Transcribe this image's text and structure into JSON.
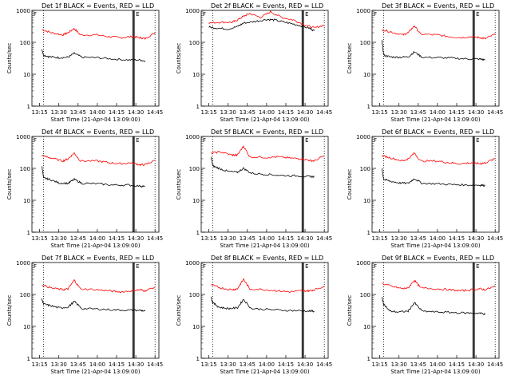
{
  "chart_data": [
    {
      "type": "line",
      "title": "Det 1f BLACK = Events, RED = LLD",
      "xlabel": "Start Time (21-Apr-04 13:09:00)",
      "ylabel": "Counts/sec",
      "x_ticks": [
        "13:15",
        "13:30",
        "13:45",
        "14:00",
        "14:15",
        "14:30",
        "14:45"
      ],
      "y_ticks": [
        "1",
        "10",
        "100",
        "1000"
      ],
      "yscale": "log",
      "ylim": [
        1,
        1000
      ],
      "markers": [
        "F",
        "E"
      ],
      "series": [
        {
          "color": "#ff0000",
          "x": [
            13.28,
            13.4,
            13.55,
            13.62,
            13.7,
            13.78,
            14.0,
            14.15,
            14.3,
            14.45,
            14.55,
            14.62,
            14.75
          ],
          "y": [
            250,
            200,
            170,
            200,
            270,
            170,
            170,
            150,
            140,
            150,
            140,
            130,
            200
          ]
        },
        {
          "color": "#000000",
          "x": [
            13.28,
            13.3,
            13.38,
            13.5,
            13.62,
            13.7,
            13.8,
            14.0,
            14.2,
            14.4,
            14.55,
            14.62
          ],
          "y": [
            60,
            40,
            35,
            33,
            34,
            45,
            34,
            33,
            30,
            28,
            28,
            26
          ]
        }
      ]
    },
    {
      "type": "line",
      "title": "Det 2f BLACK = Events, RED = LLD",
      "xlabel": "Start Time (21-Apr-04 13:09:00)",
      "ylabel": "Counts/sec",
      "x_ticks": [
        "13:15",
        "13:30",
        "13:45",
        "14:00",
        "14:15",
        "14:30",
        "14:45"
      ],
      "y_ticks": [
        "1",
        "10",
        "100",
        "1000"
      ],
      "yscale": "log",
      "ylim": [
        1,
        1000
      ],
      "markers": [
        "F",
        "E"
      ],
      "series": [
        {
          "color": "#ff0000",
          "x": [
            13.25,
            13.4,
            13.55,
            13.62,
            13.7,
            13.78,
            13.92,
            14.05,
            14.2,
            14.35,
            14.5,
            14.62,
            14.75
          ],
          "y": [
            400,
            430,
            420,
            500,
            650,
            800,
            600,
            900,
            600,
            500,
            350,
            280,
            350
          ]
        },
        {
          "color": "#000000",
          "x": [
            13.25,
            13.35,
            13.5,
            13.62,
            13.7,
            13.85,
            14.0,
            14.1,
            14.25,
            14.4,
            14.55,
            14.62
          ],
          "y": [
            300,
            280,
            260,
            310,
            400,
            450,
            520,
            500,
            420,
            350,
            280,
            230
          ]
        }
      ]
    },
    {
      "type": "line",
      "title": "Det 3f BLACK = Events, RED = LLD",
      "xlabel": "Start Time (21-Apr-04 13:09:00)",
      "ylabel": "Counts/sec",
      "x_ticks": [
        "13:15",
        "13:30",
        "13:45",
        "14:00",
        "14:15",
        "14:30",
        "14:45"
      ],
      "y_ticks": [
        "1",
        "10",
        "100",
        "1000"
      ],
      "yscale": "log",
      "ylim": [
        1,
        1000
      ],
      "markers": [
        "F",
        "E"
      ],
      "series": [
        {
          "color": "#ff0000",
          "x": [
            13.28,
            13.4,
            13.55,
            13.62,
            13.7,
            13.78,
            14.0,
            14.15,
            14.3,
            14.45,
            14.55,
            14.62,
            14.75
          ],
          "y": [
            250,
            210,
            170,
            200,
            330,
            180,
            170,
            150,
            140,
            150,
            140,
            130,
            180
          ]
        },
        {
          "color": "#000000",
          "x": [
            13.28,
            13.3,
            13.38,
            13.5,
            13.62,
            13.7,
            13.8,
            14.0,
            14.2,
            14.4,
            14.55,
            14.62
          ],
          "y": [
            110,
            40,
            35,
            34,
            35,
            50,
            34,
            33,
            32,
            30,
            30,
            28
          ]
        }
      ]
    },
    {
      "type": "line",
      "title": "Det 4f BLACK = Events, RED = LLD",
      "xlabel": "Start Time (21-Apr-04 13:09:00)",
      "ylabel": "Counts/sec",
      "x_ticks": [
        "13:15",
        "13:30",
        "13:45",
        "14:00",
        "14:15",
        "14:30",
        "14:45"
      ],
      "y_ticks": [
        "1",
        "10",
        "100",
        "1000"
      ],
      "yscale": "log",
      "ylim": [
        1,
        1000
      ],
      "markers": [
        "F",
        "E"
      ],
      "series": [
        {
          "color": "#ff0000",
          "x": [
            13.28,
            13.4,
            13.55,
            13.62,
            13.7,
            13.78,
            14.0,
            14.15,
            14.3,
            14.45,
            14.55,
            14.62,
            14.75
          ],
          "y": [
            250,
            210,
            170,
            200,
            300,
            170,
            170,
            150,
            140,
            150,
            130,
            130,
            180
          ]
        },
        {
          "color": "#000000",
          "x": [
            13.28,
            13.3,
            13.38,
            13.5,
            13.62,
            13.7,
            13.8,
            14.0,
            14.2,
            14.4,
            14.55,
            14.62
          ],
          "y": [
            120,
            50,
            45,
            35,
            34,
            45,
            34,
            33,
            30,
            30,
            28,
            27
          ]
        }
      ]
    },
    {
      "type": "line",
      "title": "Det 5f BLACK = Events, RED = LLD",
      "xlabel": "Start Time (21-Apr-04 13:09:00)",
      "ylabel": "Counts/sec",
      "x_ticks": [
        "13:15",
        "13:30",
        "13:45",
        "14:00",
        "14:15",
        "14:30",
        "14:45"
      ],
      "y_ticks": [
        "1",
        "10",
        "100",
        "1000"
      ],
      "yscale": "log",
      "ylim": [
        1,
        1000
      ],
      "markers": [
        "F",
        "E"
      ],
      "series": [
        {
          "color": "#ff0000",
          "x": [
            13.28,
            13.4,
            13.55,
            13.62,
            13.7,
            13.78,
            14.0,
            14.15,
            14.3,
            14.45,
            14.55,
            14.62,
            14.75
          ],
          "y": [
            300,
            330,
            260,
            260,
            500,
            230,
            220,
            230,
            210,
            200,
            180,
            170,
            250
          ]
        },
        {
          "color": "#000000",
          "x": [
            13.28,
            13.3,
            13.38,
            13.5,
            13.62,
            13.7,
            13.8,
            14.0,
            14.2,
            14.4,
            14.55,
            14.62
          ],
          "y": [
            220,
            120,
            100,
            80,
            75,
            100,
            70,
            65,
            60,
            58,
            55,
            55
          ]
        }
      ]
    },
    {
      "type": "line",
      "title": "Det 6f BLACK = Events, RED = LLD",
      "xlabel": "Start Time (21-Apr-04 13:09:00)",
      "ylabel": "Counts/sec",
      "x_ticks": [
        "13:15",
        "13:30",
        "13:45",
        "14:00",
        "14:15",
        "14:30",
        "14:45"
      ],
      "y_ticks": [
        "1",
        "10",
        "100",
        "1000"
      ],
      "yscale": "log",
      "ylim": [
        1,
        1000
      ],
      "markers": [
        "F",
        "E"
      ],
      "series": [
        {
          "color": "#ff0000",
          "x": [
            13.28,
            13.4,
            13.55,
            13.62,
            13.7,
            13.78,
            14.0,
            14.15,
            14.3,
            14.45,
            14.55,
            14.62,
            14.75
          ],
          "y": [
            250,
            210,
            170,
            200,
            300,
            170,
            170,
            150,
            140,
            150,
            140,
            150,
            200
          ]
        },
        {
          "color": "#000000",
          "x": [
            13.28,
            13.3,
            13.38,
            13.5,
            13.62,
            13.7,
            13.8,
            14.0,
            14.2,
            14.4,
            14.55,
            14.62
          ],
          "y": [
            100,
            45,
            40,
            35,
            34,
            48,
            34,
            33,
            31,
            30,
            30,
            29
          ]
        }
      ]
    },
    {
      "type": "line",
      "title": "Det 7f BLACK = Events, RED = LLD",
      "xlabel": "Start Time (21-Apr-04 13:09:00)",
      "ylabel": "Counts/sec",
      "x_ticks": [
        "13:15",
        "13:30",
        "13:45",
        "14:00",
        "14:15",
        "14:30",
        "14:45"
      ],
      "y_ticks": [
        "1",
        "10",
        "100",
        "1000"
      ],
      "yscale": "log",
      "ylim": [
        1,
        1000
      ],
      "markers": [
        "F",
        "E"
      ],
      "series": [
        {
          "color": "#ff0000",
          "x": [
            13.28,
            13.4,
            13.55,
            13.62,
            13.7,
            13.78,
            14.0,
            14.15,
            14.3,
            14.45,
            14.55,
            14.62,
            14.75
          ],
          "y": [
            200,
            160,
            140,
            150,
            280,
            150,
            140,
            130,
            120,
            130,
            140,
            130,
            170
          ]
        },
        {
          "color": "#000000",
          "x": [
            13.28,
            13.3,
            13.38,
            13.5,
            13.62,
            13.7,
            13.8,
            14.0,
            14.2,
            14.4,
            14.55,
            14.62
          ],
          "y": [
            70,
            50,
            45,
            38,
            40,
            60,
            36,
            35,
            33,
            32,
            32,
            30
          ]
        }
      ]
    },
    {
      "type": "line",
      "title": "Det 8f BLACK = Events, RED = LLD",
      "xlabel": "Start Time (21-Apr-04 13:09:00)",
      "ylabel": "Counts/sec",
      "x_ticks": [
        "13:15",
        "13:30",
        "13:45",
        "14:00",
        "14:15",
        "14:30",
        "14:45"
      ],
      "y_ticks": [
        "1",
        "10",
        "100",
        "1000"
      ],
      "yscale": "log",
      "ylim": [
        1,
        1000
      ],
      "markers": [
        "F",
        "E"
      ],
      "series": [
        {
          "color": "#ff0000",
          "x": [
            13.28,
            13.4,
            13.55,
            13.62,
            13.7,
            13.78,
            14.0,
            14.15,
            14.3,
            14.45,
            14.55,
            14.62,
            14.75
          ],
          "y": [
            200,
            160,
            140,
            150,
            300,
            150,
            140,
            130,
            120,
            130,
            130,
            140,
            180
          ]
        },
        {
          "color": "#000000",
          "x": [
            13.28,
            13.3,
            13.38,
            13.5,
            13.62,
            13.7,
            13.8,
            14.0,
            14.2,
            14.4,
            14.55,
            14.62
          ],
          "y": [
            80,
            55,
            40,
            36,
            38,
            70,
            36,
            34,
            32,
            31,
            30,
            30
          ]
        }
      ]
    },
    {
      "type": "line",
      "title": "Det 9f BLACK = Events, RED = LLD",
      "xlabel": "Start Time (21-Apr-04 13:09:00)",
      "ylabel": "Counts/sec",
      "x_ticks": [
        "13:15",
        "13:30",
        "13:45",
        "14:00",
        "14:15",
        "14:30",
        "14:45"
      ],
      "y_ticks": [
        "1",
        "10",
        "100",
        "1000"
      ],
      "yscale": "log",
      "ylim": [
        1,
        1000
      ],
      "markers": [
        "F",
        "E"
      ],
      "series": [
        {
          "color": "#ff0000",
          "x": [
            13.28,
            13.4,
            13.55,
            13.62,
            13.7,
            13.78,
            14.0,
            14.15,
            14.3,
            14.45,
            14.55,
            14.62,
            14.75
          ],
          "y": [
            220,
            180,
            150,
            160,
            280,
            160,
            150,
            140,
            130,
            140,
            150,
            140,
            180
          ]
        },
        {
          "color": "#000000",
          "x": [
            13.28,
            13.3,
            13.38,
            13.5,
            13.62,
            13.7,
            13.8,
            14.0,
            14.2,
            14.4,
            14.55,
            14.62
          ],
          "y": [
            80,
            50,
            30,
            28,
            30,
            55,
            30,
            28,
            27,
            26,
            26,
            24
          ]
        }
      ]
    }
  ]
}
